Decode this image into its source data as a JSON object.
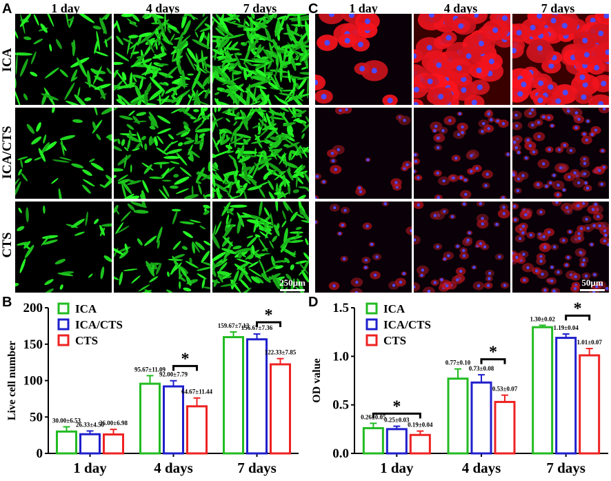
{
  "panels": {
    "A": {
      "letter": "A",
      "columns": [
        "1 day",
        "4 days",
        "7 days"
      ],
      "rows": [
        "ICA",
        "ICA/CTS",
        "CTS"
      ],
      "scale_label": "250µm",
      "stain_color": "#2ee62e"
    },
    "B": {
      "letter": "B",
      "chart_data": {
        "type": "bar",
        "categories": [
          "1 day",
          "4 days",
          "7 days"
        ],
        "ylabel": "Live cell number",
        "ylim": [
          0,
          200
        ],
        "yticks": [
          0,
          50,
          100,
          150,
          200
        ],
        "legend_position": "top-left",
        "series": [
          {
            "name": "ICA",
            "color": "#22bb22",
            "values": [
              30.0,
              95.67,
              159.67
            ],
            "errors": [
              6.53,
              11.09,
              7.13
            ],
            "labels": [
              "30.00±6.53",
              "95.67±11.09",
              "159.67±7.13"
            ]
          },
          {
            "name": "ICA/CTS",
            "color": "#1f1fcc",
            "values": [
              26.33,
              92.0,
              156.67
            ],
            "errors": [
              4.5,
              7.79,
              7.36
            ],
            "labels": [
              "26.33±4.50",
              "92.00±7.79",
              "156.67±7.36"
            ]
          },
          {
            "name": "CTS",
            "color": "#ee2222",
            "values": [
              26.0,
              64.67,
              122.33
            ],
            "errors": [
              6.98,
              11.44,
              7.85
            ],
            "labels": [
              "26.00±6.98",
              "64.67±11.44",
              "122.33±7.85"
            ]
          }
        ],
        "significance": [
          {
            "category": "4 days",
            "from_series": 1,
            "to_series": 2,
            "label": "*"
          },
          {
            "category": "7 days",
            "from_series": 1,
            "to_series": 2,
            "label": "*"
          }
        ]
      }
    },
    "C": {
      "letter": "C",
      "columns": [
        "1 day",
        "4 days",
        "7 days"
      ],
      "scale_label": "50µm",
      "cytoskeleton_color": "#e21b1b",
      "nucleus_color": "#3a3aff"
    },
    "D": {
      "letter": "D",
      "chart_data": {
        "type": "bar",
        "categories": [
          "1 day",
          "4 days",
          "7 days"
        ],
        "ylabel": "OD value",
        "ylim": [
          0,
          1.5
        ],
        "yticks": [
          0.0,
          0.5,
          1.0,
          1.5
        ],
        "legend_position": "top-left",
        "series": [
          {
            "name": "ICA",
            "color": "#22bb22",
            "values": [
              0.26,
              0.77,
              1.3
            ],
            "errors": [
              0.05,
              0.1,
              0.02
            ],
            "labels": [
              "0.26±0.05",
              "0.77±0.10",
              "1.30±0.02"
            ]
          },
          {
            "name": "ICA/CTS",
            "color": "#1f1fcc",
            "values": [
              0.25,
              0.73,
              1.19
            ],
            "errors": [
              0.03,
              0.08,
              0.04
            ],
            "labels": [
              "0.25±0.03",
              "0.73±0.08",
              "1.19±0.04"
            ]
          },
          {
            "name": "CTS",
            "color": "#ee2222",
            "values": [
              0.19,
              0.53,
              1.01
            ],
            "errors": [
              0.04,
              0.07,
              0.07
            ],
            "labels": [
              "0.19±0.04",
              "0.53±0.07",
              "1.01±0.07"
            ]
          }
        ],
        "significance": [
          {
            "category": "1 day",
            "from_series": 0,
            "to_series": 2,
            "label": "*"
          },
          {
            "category": "4 days",
            "from_series": 1,
            "to_series": 2,
            "label": "*"
          },
          {
            "category": "7 days",
            "from_series": 1,
            "to_series": 2,
            "label": "*"
          }
        ]
      }
    }
  }
}
